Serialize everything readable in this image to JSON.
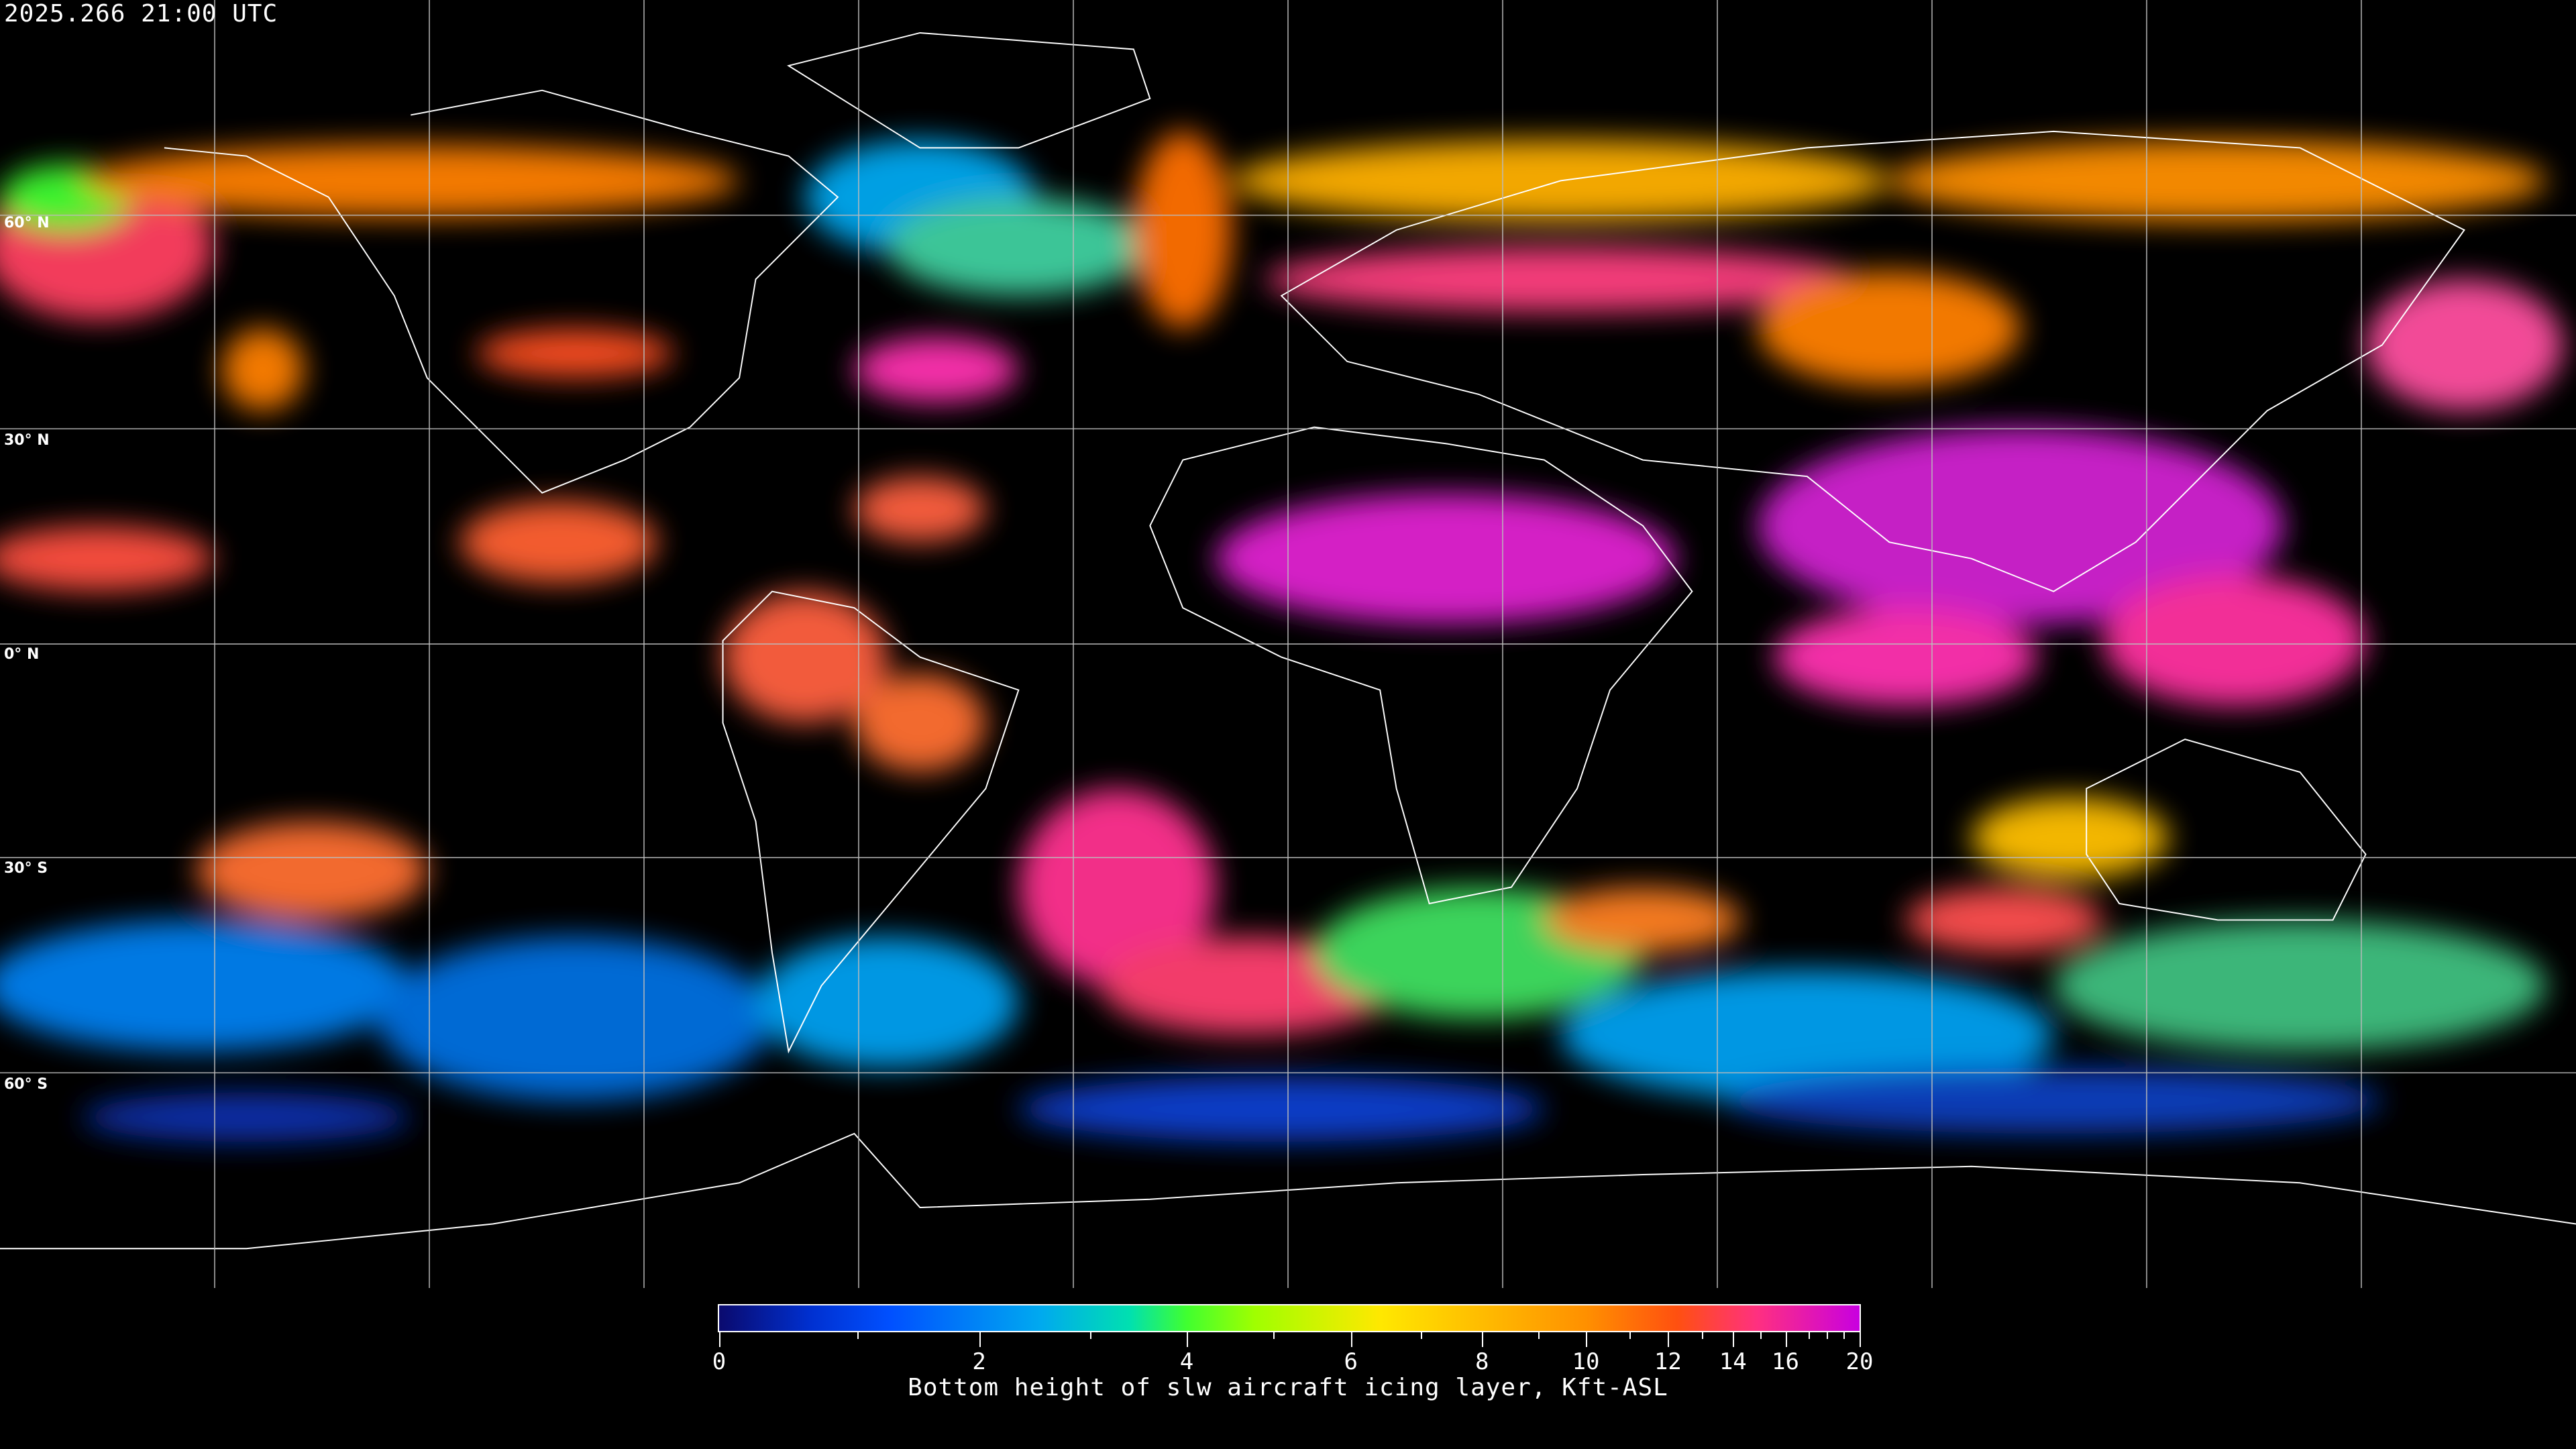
{
  "header": {
    "timestamp": "2025.266 21:00 UTC"
  },
  "map": {
    "projection": "equirectangular",
    "grid": true,
    "lat_labels": [
      "60° N",
      "30° N",
      "0° N",
      "30° S",
      "60° S"
    ]
  },
  "colorbar": {
    "label": "Bottom height of slw aircraft icing layer, Kft-ASL",
    "range": [
      0,
      20
    ],
    "major_ticks": [
      "0",
      "2",
      "4",
      "6",
      "8",
      "10",
      "12",
      "14",
      "16",
      "20"
    ],
    "minor_ticks": [
      1,
      3,
      5,
      7,
      9,
      11,
      13,
      15,
      17,
      18,
      19
    ],
    "colors": [
      "#0a0a6e",
      "#0050ff",
      "#00a8f0",
      "#40ff30",
      "#ffe800",
      "#ff9000",
      "#ff5010",
      "#ff3080",
      "#c800e0"
    ]
  }
}
